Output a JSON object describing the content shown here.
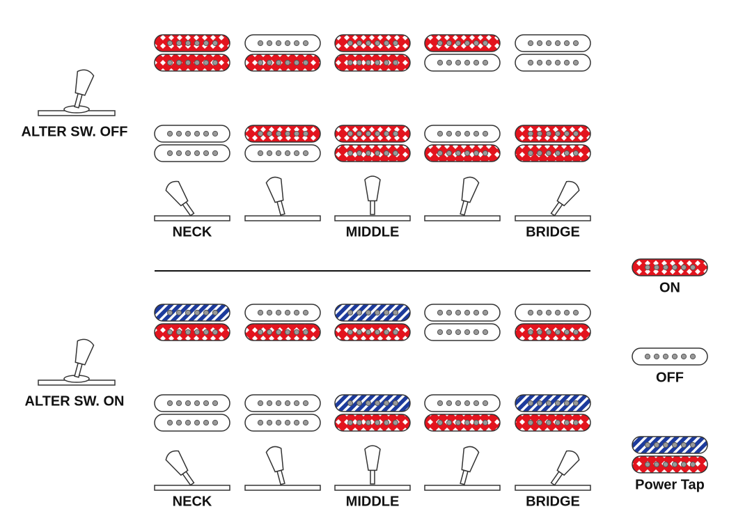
{
  "legend": {
    "items": [
      {
        "label": "ON"
      },
      {
        "label": "OFF"
      },
      {
        "label": "Power Tap"
      }
    ]
  },
  "sections": [
    {
      "switch_label": "ALTER SW. OFF",
      "position_labels": [
        "NECK",
        "MIDDLE",
        "BRIDGE"
      ],
      "rows": [
        [
          [
            0,
            0
          ],
          [
            1,
            0
          ],
          [
            0,
            0
          ],
          [
            0,
            1
          ],
          [
            1,
            1
          ]
        ],
        [
          [
            1,
            1
          ],
          [
            0,
            1
          ],
          [
            0,
            0
          ],
          [
            1,
            0
          ],
          [
            0,
            0
          ]
        ]
      ]
    },
    {
      "switch_label": "ALTER SW. ON",
      "position_labels": [
        "NECK",
        "MIDDLE",
        "BRIDGE"
      ],
      "rows": [
        [
          [
            2,
            0
          ],
          [
            1,
            0
          ],
          [
            2,
            0
          ],
          [
            1,
            1
          ],
          [
            1,
            0
          ]
        ],
        [
          [
            1,
            1
          ],
          [
            1,
            1
          ],
          [
            2,
            0
          ],
          [
            1,
            0
          ],
          [
            2,
            0
          ]
        ]
      ]
    }
  ]
}
